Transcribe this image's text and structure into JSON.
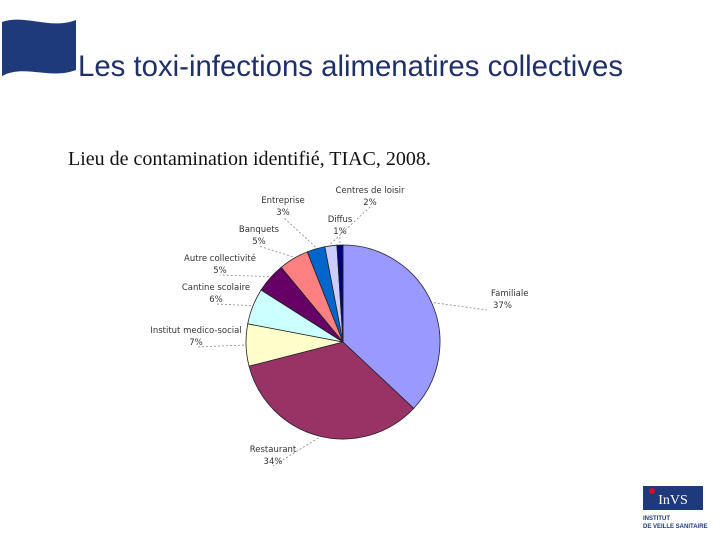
{
  "header": {
    "title": "Les toxi-infections alimenatires collectives"
  },
  "logo": {
    "name": "InVS",
    "line1": "INSTITUT",
    "line2": "DE VEILLE SANITAIRE"
  },
  "chart_data": {
    "type": "pie",
    "title": "Lieu de contamination identifié, TIAC, 2008.",
    "categories": [
      "Familiale",
      "Restaurant",
      "Institut medico-social",
      "Cantine scolaire",
      "Autre collectivité",
      "Banquets",
      "Entreprise",
      "Centres de loisir",
      "Diffus"
    ],
    "values": [
      37,
      34,
      7,
      6,
      5,
      5,
      3,
      2,
      1
    ],
    "value_labels": [
      "37%",
      "34%",
      "7%",
      "6%",
      "5%",
      "5%",
      "3%",
      "2%",
      "1%"
    ],
    "colors": [
      "#9999ff",
      "#993366",
      "#ffffcc",
      "#ccffff",
      "#660066",
      "#ff8080",
      "#0066cc",
      "#ccccff",
      "#000080"
    ]
  }
}
